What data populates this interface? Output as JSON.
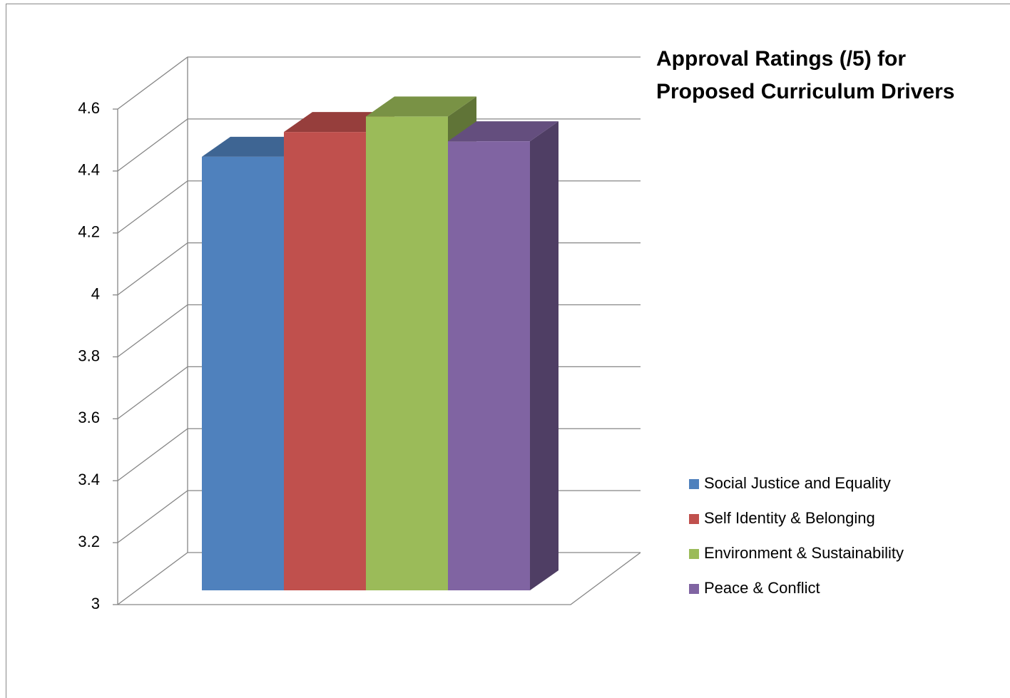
{
  "chart_data": {
    "type": "bar",
    "title": "Approval Ratings (/5) for Proposed Curriculum Drivers",
    "series": [
      {
        "name": "Social Justice and Equality",
        "color": "#4f81bd",
        "values": [
          4.4
        ]
      },
      {
        "name": "Self Identity & Belonging",
        "color": "#c0504d",
        "values": [
          4.48
        ]
      },
      {
        "name": "Environment & Sustainability",
        "color": "#9bbb59",
        "values": [
          4.53
        ]
      },
      {
        "name": "Peace & Conflict",
        "color": "#8064a2",
        "values": [
          4.45
        ]
      }
    ],
    "ylim": [
      3,
      4.6
    ],
    "yticks": [
      3,
      3.2,
      3.4,
      3.6,
      3.8,
      4,
      4.2,
      4.4,
      4.6
    ],
    "grid": true,
    "legend": "right"
  }
}
